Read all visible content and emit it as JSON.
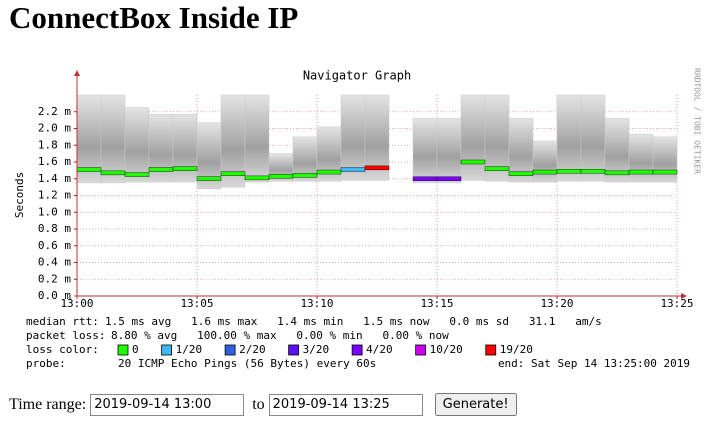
{
  "header": {
    "title": "ConnectBox Inside IP"
  },
  "chart_data": {
    "type": "smokeping",
    "title": "Navigator Graph",
    "y_label": "Seconds",
    "credit": "RRDTOOL / TOBI OETIKER",
    "x": [
      "13:00",
      "13:01",
      "13:02",
      "13:03",
      "13:04",
      "13:05",
      "13:06",
      "13:07",
      "13:08",
      "13:09",
      "13:10",
      "13:11",
      "13:12",
      "13:13",
      "13:14",
      "13:15",
      "13:16",
      "13:17",
      "13:18",
      "13:19",
      "13:20",
      "13:21",
      "13:22",
      "13:23",
      "13:24"
    ],
    "xlim": [
      "13:00",
      "13:25"
    ],
    "xticks": [
      "13:00",
      "13:05",
      "13:10",
      "13:15",
      "13:20",
      "13:25"
    ],
    "ylim": [
      0,
      0.0024
    ],
    "yticks": [
      {
        "value": 0,
        "label": "0.0 m"
      },
      {
        "value": 0.0002,
        "label": "0.2 m"
      },
      {
        "value": 0.0004,
        "label": "0.4 m"
      },
      {
        "value": 0.0006,
        "label": "0.6 m"
      },
      {
        "value": 0.0008,
        "label": "0.8 m"
      },
      {
        "value": 0.001,
        "label": "1.0 m"
      },
      {
        "value": 0.0012,
        "label": "1.2 m"
      },
      {
        "value": 0.0014,
        "label": "1.4 m"
      },
      {
        "value": 0.0016,
        "label": "1.6 m"
      },
      {
        "value": 0.0018,
        "label": "1.8 m"
      },
      {
        "value": 0.002,
        "label": "2.0 m"
      },
      {
        "value": 0.0022,
        "label": "2.2 m"
      }
    ],
    "grid": true,
    "smoke": {
      "color": "#c8c8c8",
      "min": [
        0.00135,
        0.00135,
        0.00136,
        0.00136,
        0.00136,
        0.00128,
        0.0013,
        0.00136,
        0.00137,
        0.00137,
        0.00137,
        0.00138,
        0.00138,
        null,
        0.00135,
        0.00135,
        0.00138,
        0.00137,
        0.00136,
        0.00136,
        0.00137,
        0.00137,
        0.00136,
        0.00136,
        0.00136
      ],
      "max": [
        0.0024,
        0.0024,
        0.00225,
        0.00217,
        0.00217,
        0.00207,
        0.0024,
        0.0024,
        0.0017,
        0.0019,
        0.00202,
        0.0024,
        0.0024,
        null,
        0.00212,
        0.00212,
        0.0024,
        0.0024,
        0.00212,
        0.00185,
        0.0024,
        0.0024,
        0.00212,
        0.00193,
        0.0019
      ]
    },
    "series": [
      {
        "name": "median rtt",
        "values": [
          0.00151,
          0.00147,
          0.00145,
          0.00151,
          0.00152,
          0.0014,
          0.00146,
          0.00141,
          0.00143,
          0.00144,
          0.00148,
          0.00151,
          0.00153,
          null,
          0.0014,
          0.0014,
          0.0016,
          0.00152,
          0.00146,
          0.00148,
          0.00149,
          0.00149,
          0.00147,
          0.00148,
          0.00148
        ],
        "colors": [
          "#20ff00",
          "#20ff00",
          "#20ff00",
          "#20ff00",
          "#20ff00",
          "#20ff00",
          "#20ff00",
          "#20ff00",
          "#20ff00",
          "#20ff00",
          "#20ff00",
          "#40b8f0",
          "#ff0000",
          null,
          "#7e00ff",
          "#7e00ff",
          "#20ff00",
          "#20ff00",
          "#20ff00",
          "#20ff00",
          "#20ff00",
          "#20ff00",
          "#20ff00",
          "#20ff00",
          "#20ff00"
        ]
      }
    ],
    "stats": [
      {
        "label": "median rtt:",
        "text": "1.5 ms avg   1.6 ms max   1.4 ms min   1.5 ms now   0.0 ms sd   31.1   am/s"
      },
      {
        "label": "packet loss:",
        "text": "8.80 % avg   100.00 % max   0.00 % min   0.00 % now"
      }
    ],
    "loss_legend": {
      "label": "loss color:",
      "items": [
        {
          "label": "0",
          "color": "#20ff00"
        },
        {
          "label": "1/20",
          "color": "#40b8f0"
        },
        {
          "label": "2/20",
          "color": "#3060e0"
        },
        {
          "label": "3/20",
          "color": "#5a10f0"
        },
        {
          "label": "4/20",
          "color": "#7e00ff"
        },
        {
          "label": "10/20",
          "color": "#d000f0"
        },
        {
          "label": "19/20",
          "color": "#ff0000"
        }
      ]
    },
    "probe": {
      "label": "probe:",
      "text": "20 ICMP Echo Pings (56 Bytes) every 60s",
      "end": "end: Sat Sep 14 13:25:00 2019"
    }
  },
  "form": {
    "label": "Time range:",
    "from": "2019-09-14 13:00",
    "to_label": "to",
    "to": "2019-09-14 13:25",
    "button": "Generate!"
  }
}
